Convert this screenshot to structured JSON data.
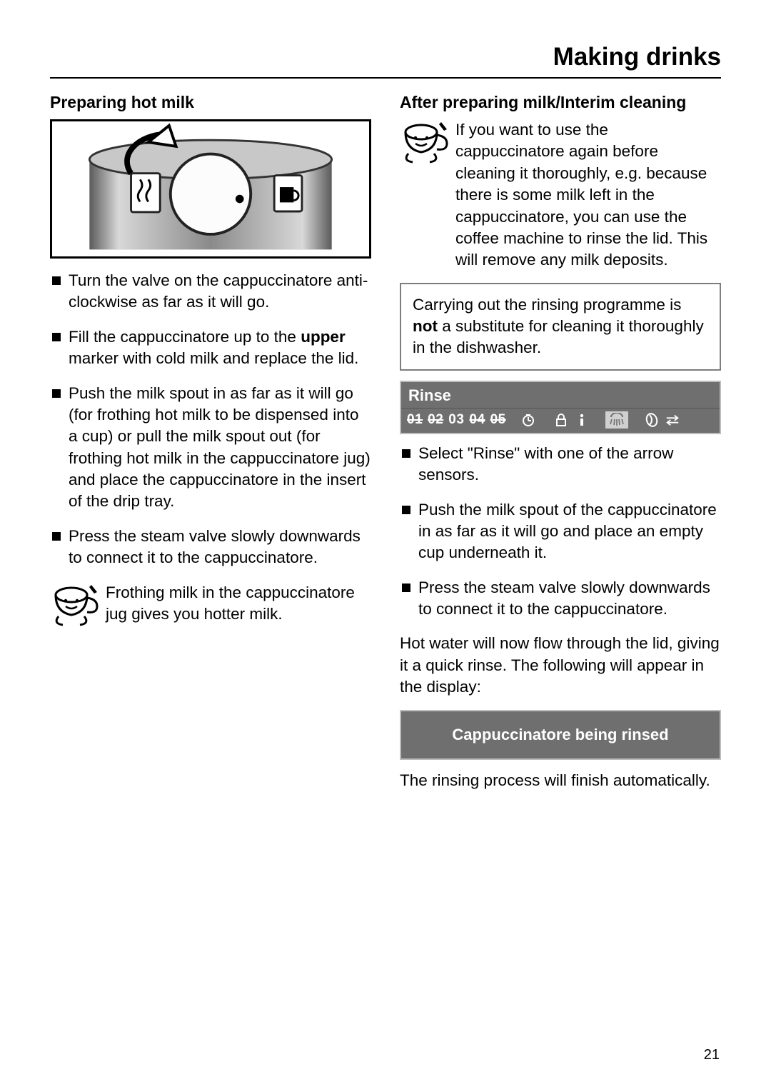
{
  "page_title": "Making drinks",
  "page_number": "21",
  "left": {
    "heading": "Preparing hot milk",
    "bullets": [
      "Turn the valve on the cappuccinatore anti-clockwise as far as it will go.",
      "Fill the cappuccinatore up to the <b>upper</b> marker with cold milk and replace the lid.",
      "Push the milk spout in as far as it will go (for frothing hot milk to be dispensed into a cup) or pull the milk spout out (for frothing hot milk in the cappuccinatore jug) and place the cappuccinatore in the insert of the drip tray.",
      "Press the steam valve slowly downwards to connect it to the cappuccinatore."
    ],
    "tip": "Frothing milk in the cappuccinatore jug gives you hotter milk."
  },
  "right": {
    "heading": "After preparing milk/Interim cleaning",
    "intro": "If you want to use the cappuccinatore again before cleaning it thoroughly, e.g. because there is some milk left in the cappuccinatore, you can use the coffee machine to rinse the lid. This will remove any milk deposits.",
    "callout": "Carrying out the rinsing programme is <b>not</b> a substitute for cleaning it thoroughly in the dishwasher.",
    "display_rinse_label": "Rinse",
    "display_icons": [
      "01",
      "02",
      "03",
      "04",
      "05"
    ],
    "bullets": [
      "Select \"Rinse\" with one of the arrow sensors.",
      "Push the milk spout of the cappuccinatore in as far as it will go and place an empty cup underneath it.",
      "Press the steam valve slowly downwards to connect it to the cappuccinatore."
    ],
    "para1": "Hot water will now flow through the lid, giving it a quick rinse. The following will appear in the display:",
    "display_status": "Cappuccinatore being rinsed",
    "para2": "The rinsing process will finish automatically."
  },
  "colors": {
    "text": "#000000",
    "panel_bg": "#6f6f6f",
    "panel_border": "#bdbdbd",
    "highlight": "#d0d0d0"
  }
}
